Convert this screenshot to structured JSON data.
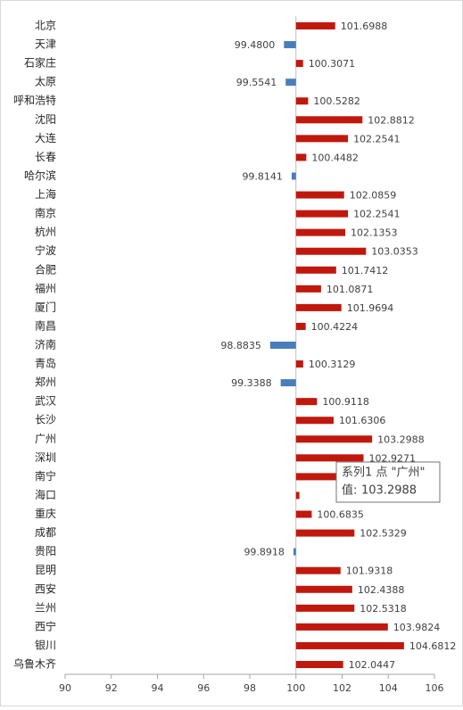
{
  "chart_data": {
    "type": "bar",
    "orientation": "horizontal",
    "categories": [
      "北京",
      "天津",
      "石家庄",
      "太原",
      "呼和浩特",
      "沈阳",
      "大连",
      "长春",
      "哈尔滨",
      "上海",
      "南京",
      "杭州",
      "宁波",
      "合肥",
      "福州",
      "厦门",
      "南昌",
      "济南",
      "青岛",
      "郑州",
      "武汉",
      "长沙",
      "广州",
      "深圳",
      "南宁",
      "海口",
      "重庆",
      "成都",
      "贵阳",
      "昆明",
      "西安",
      "兰州",
      "西宁",
      "银川",
      "乌鲁木齐"
    ],
    "values": [
      101.6988,
      99.48,
      100.3071,
      99.5541,
      100.5282,
      102.8812,
      102.2541,
      100.4482,
      99.8141,
      102.0859,
      102.2541,
      102.1353,
      103.0353,
      101.7412,
      101.0871,
      101.9694,
      100.4224,
      98.8835,
      100.3129,
      99.3388,
      100.9118,
      101.6306,
      103.2988,
      102.9271,
      102.0,
      100.15,
      100.6835,
      102.5329,
      99.8918,
      101.9318,
      102.4388,
      102.5318,
      103.9824,
      104.6812,
      102.0447
    ],
    "value_labels": [
      "101.6988",
      "99.4800",
      "100.3071",
      "99.5541",
      "100.5282",
      "102.8812",
      "102.2541",
      "100.4482",
      "99.8141",
      "102.0859",
      "102.2541",
      "102.1353",
      "103.0353",
      "101.7412",
      "101.0871",
      "101.9694",
      "100.4224",
      "98.8835",
      "100.3129",
      "99.3388",
      "100.9118",
      "101.6306",
      "103.2988",
      "102.9271",
      null,
      null,
      "100.6835",
      "102.5329",
      "99.8918",
      "101.9318",
      "102.4388",
      "102.5318",
      "103.9824",
      "104.6812",
      "102.0447"
    ],
    "base": 100,
    "color": "#c0180c",
    "negative_color": "#4a7ebb",
    "xlim": [
      90,
      106
    ],
    "xticks": [
      90,
      92,
      94,
      96,
      98,
      100,
      102,
      104,
      106
    ],
    "tooltip": {
      "title": "系列1 点 \"广州\"",
      "label": "值:",
      "value": 103.2988
    }
  }
}
